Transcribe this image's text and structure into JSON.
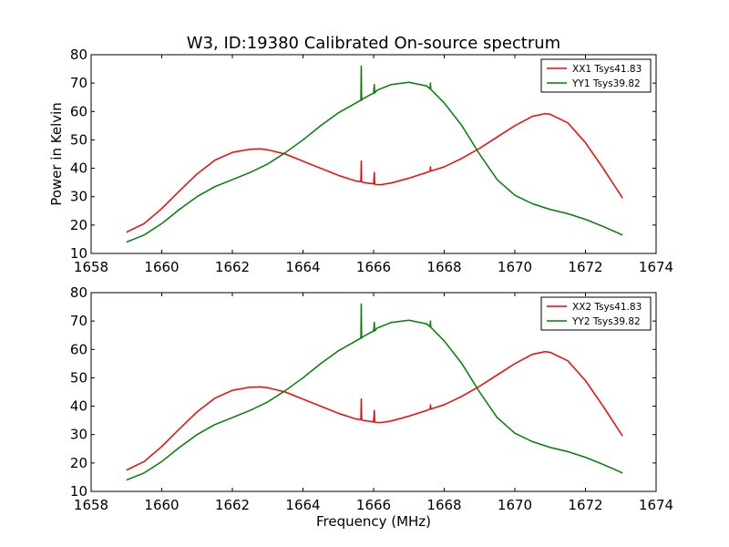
{
  "figure": {
    "title": "W3, ID:19380 Calibrated On-source spectrum",
    "ylabel": "Power in Kelvin",
    "xlabel": "Frequency (MHz)"
  },
  "colors": {
    "red": "#ff0000",
    "green": "#008000",
    "frame": "#000000",
    "background": "#ffffff"
  },
  "chart_data": [
    {
      "type": "line",
      "title": "W3, ID:19380 Calibrated On-source spectrum",
      "ylabel": "Power in Kelvin",
      "xlabel": "",
      "xlim": [
        1658,
        1674
      ],
      "ylim": [
        10,
        80
      ],
      "xticks": [
        "1658",
        "1660",
        "1662",
        "1664",
        "1666",
        "1668",
        "1670",
        "1672",
        "1674"
      ],
      "yticks": [
        "10",
        "20",
        "30",
        "40",
        "50",
        "60",
        "70",
        "80"
      ],
      "legend_position": "top-right",
      "series": [
        {
          "name": "XX1 Tsys41.83",
          "color": "#ff0000",
          "x": [
            1659.0,
            1659.5,
            1660.0,
            1660.5,
            1661.0,
            1661.5,
            1662.0,
            1662.5,
            1662.8,
            1663.0,
            1663.5,
            1664.0,
            1664.5,
            1665.0,
            1665.5,
            1665.64,
            1665.65,
            1665.66,
            1665.7,
            1666.0,
            1666.02,
            1666.03,
            1666.05,
            1666.2,
            1666.5,
            1667.0,
            1667.5,
            1667.6,
            1667.61,
            1667.62,
            1668.0,
            1668.5,
            1669.0,
            1669.5,
            1670.0,
            1670.5,
            1670.85,
            1671.0,
            1671.5,
            1672.0,
            1672.5,
            1673.05
          ],
          "y": [
            17.5,
            20.5,
            25.8,
            32.0,
            38.0,
            42.8,
            45.6,
            46.7,
            46.8,
            46.5,
            45.0,
            42.5,
            40.0,
            37.5,
            35.5,
            35.3,
            42.5,
            35.3,
            35.0,
            34.5,
            38.5,
            34.5,
            34.3,
            34.2,
            34.8,
            36.5,
            38.5,
            39.0,
            40.5,
            39.0,
            40.5,
            43.5,
            47.0,
            51.0,
            55.0,
            58.3,
            59.2,
            59.0,
            56.0,
            49.0,
            40.0,
            29.5
          ]
        },
        {
          "name": "YY1 Tsys39.82",
          "color": "#008000",
          "x": [
            1659.0,
            1659.5,
            1660.0,
            1660.5,
            1661.0,
            1661.5,
            1662.0,
            1662.5,
            1663.0,
            1663.5,
            1664.0,
            1664.5,
            1665.0,
            1665.5,
            1665.64,
            1665.65,
            1665.66,
            1665.7,
            1666.0,
            1666.02,
            1666.03,
            1666.1,
            1666.5,
            1667.0,
            1667.5,
            1667.6,
            1667.61,
            1667.62,
            1668.0,
            1668.5,
            1669.0,
            1669.5,
            1670.0,
            1670.5,
            1671.0,
            1671.5,
            1672.0,
            1672.5,
            1673.05
          ],
          "y": [
            14.0,
            16.5,
            20.5,
            25.5,
            30.0,
            33.5,
            36.0,
            38.5,
            41.5,
            45.5,
            50.0,
            55.0,
            59.5,
            63.0,
            64.0,
            76.0,
            64.0,
            64.5,
            66.5,
            69.5,
            66.5,
            67.5,
            69.5,
            70.3,
            69.0,
            68.0,
            70.0,
            67.8,
            63.0,
            55.0,
            45.0,
            36.0,
            30.5,
            27.5,
            25.5,
            24.0,
            22.0,
            19.5,
            16.5
          ]
        }
      ]
    },
    {
      "type": "line",
      "title": "",
      "ylabel": "",
      "xlabel": "Frequency (MHz)",
      "xlim": [
        1658,
        1674
      ],
      "ylim": [
        10,
        80
      ],
      "xticks": [
        "1658",
        "1660",
        "1662",
        "1664",
        "1666",
        "1668",
        "1670",
        "1672",
        "1674"
      ],
      "yticks": [
        "10",
        "20",
        "30",
        "40",
        "50",
        "60",
        "70",
        "80"
      ],
      "legend_position": "top-right",
      "series": [
        {
          "name": "XX2 Tsys41.83",
          "color": "#ff0000",
          "x": [
            1659.0,
            1659.5,
            1660.0,
            1660.5,
            1661.0,
            1661.5,
            1662.0,
            1662.5,
            1662.8,
            1663.0,
            1663.5,
            1664.0,
            1664.5,
            1665.0,
            1665.5,
            1665.64,
            1665.65,
            1665.66,
            1665.7,
            1666.0,
            1666.02,
            1666.03,
            1666.05,
            1666.2,
            1666.5,
            1667.0,
            1667.5,
            1667.6,
            1667.61,
            1667.62,
            1668.0,
            1668.5,
            1669.0,
            1669.5,
            1670.0,
            1670.5,
            1670.85,
            1671.0,
            1671.5,
            1672.0,
            1672.5,
            1673.05
          ],
          "y": [
            17.5,
            20.5,
            25.8,
            32.0,
            38.0,
            42.8,
            45.6,
            46.7,
            46.8,
            46.5,
            45.0,
            42.5,
            40.0,
            37.5,
            35.5,
            35.3,
            42.5,
            35.3,
            35.0,
            34.5,
            38.5,
            34.5,
            34.3,
            34.2,
            34.8,
            36.5,
            38.5,
            39.0,
            40.5,
            39.0,
            40.5,
            43.5,
            47.0,
            51.0,
            55.0,
            58.3,
            59.2,
            59.0,
            56.0,
            49.0,
            40.0,
            29.5
          ]
        },
        {
          "name": "YY2 Tsys39.82",
          "color": "#008000",
          "x": [
            1659.0,
            1659.5,
            1660.0,
            1660.5,
            1661.0,
            1661.5,
            1662.0,
            1662.5,
            1663.0,
            1663.5,
            1664.0,
            1664.5,
            1665.0,
            1665.5,
            1665.64,
            1665.65,
            1665.66,
            1665.7,
            1666.0,
            1666.02,
            1666.03,
            1666.1,
            1666.5,
            1667.0,
            1667.5,
            1667.6,
            1667.61,
            1667.62,
            1668.0,
            1668.5,
            1669.0,
            1669.5,
            1670.0,
            1670.5,
            1671.0,
            1671.5,
            1672.0,
            1672.5,
            1673.05
          ],
          "y": [
            14.0,
            16.5,
            20.5,
            25.5,
            30.0,
            33.5,
            36.0,
            38.5,
            41.5,
            45.5,
            50.0,
            55.0,
            59.5,
            63.0,
            64.0,
            76.0,
            64.0,
            64.5,
            66.5,
            69.5,
            66.5,
            67.5,
            69.5,
            70.3,
            69.0,
            68.0,
            70.0,
            67.8,
            63.0,
            55.0,
            45.0,
            36.0,
            30.5,
            27.5,
            25.5,
            24.0,
            22.0,
            19.5,
            16.5
          ]
        }
      ]
    }
  ]
}
